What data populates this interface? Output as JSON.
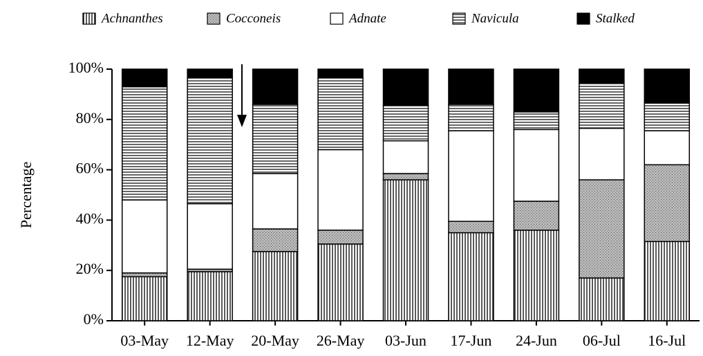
{
  "chart_data": {
    "type": "stacked-bar",
    "categories": [
      "03-May",
      "12-May",
      "20-May",
      "26-May",
      "03-Jun",
      "17-Jun",
      "24-Jun",
      "06-Jul",
      "16-Jul"
    ],
    "series": [
      {
        "name": "Achnanthes",
        "pattern": "vertical-lines",
        "values": [
          17.5,
          19.5,
          27.5,
          30.5,
          56,
          35,
          36,
          17,
          31.5
        ]
      },
      {
        "name": "Cocconeis",
        "pattern": "stipple",
        "values": [
          1.5,
          1,
          9,
          5.5,
          2.5,
          4.5,
          11.5,
          39,
          30.5
        ]
      },
      {
        "name": "Adnate",
        "pattern": "white",
        "values": [
          29,
          26,
          22,
          32,
          13,
          36,
          28.5,
          20.5,
          13.5
        ]
      },
      {
        "name": "Navicula",
        "pattern": "horizontal-lines",
        "values": [
          45,
          50,
          27.5,
          28.5,
          14,
          10.5,
          7,
          18,
          11
        ]
      },
      {
        "name": "Stalked",
        "pattern": "solid",
        "values": [
          7,
          3.5,
          14,
          3.5,
          14.5,
          14,
          17,
          5.5,
          13.5
        ]
      }
    ],
    "y_label": "Percentage",
    "ylim": [
      0,
      100
    ],
    "yticks": [
      {
        "value": 0,
        "label": "0%"
      },
      {
        "value": 20,
        "label": "20%"
      },
      {
        "value": 40,
        "label": "40%"
      },
      {
        "value": 60,
        "label": "60%"
      },
      {
        "value": 80,
        "label": "80%"
      },
      {
        "value": 100,
        "label": "100%"
      }
    ]
  }
}
